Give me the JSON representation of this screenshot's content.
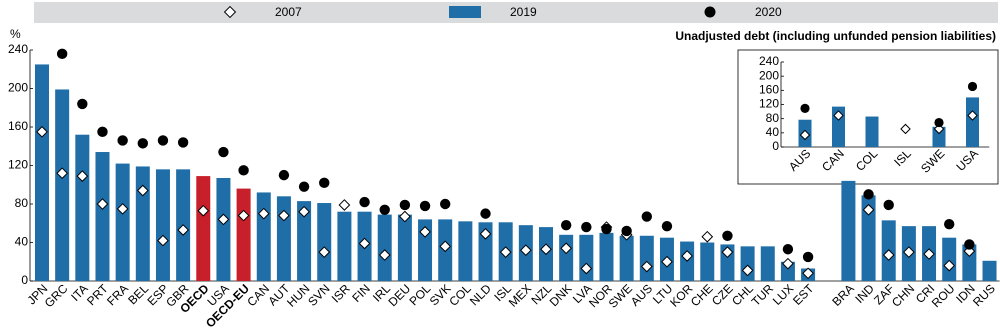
{
  "chart_data": [
    {
      "type": "bar",
      "subtitle": "Unadjusted debt (including unfunded pension liabilities)",
      "y_label": "%",
      "legend": "top",
      "grid": false,
      "categories": [
        "JPN",
        "GRC",
        "ITA",
        "PRT",
        "FRA",
        "BEL",
        "ESP",
        "GBR",
        "OECD",
        "USA",
        "OECD-EU",
        "CAN",
        "AUT",
        "HUN",
        "SVN",
        "ISR",
        "FIN",
        "IRL",
        "DEU",
        "POL",
        "SVK",
        "COL",
        "NLD",
        "ISL",
        "MEX",
        "NZL",
        "DNK",
        "LVA",
        "NOR",
        "SWE",
        "AUS",
        "LTU",
        "KOR",
        "CHE",
        "CZE",
        "CHL",
        "TUR",
        "LUX",
        "EST",
        null,
        "BRA",
        "IND",
        "ZAF",
        "CHN",
        "CRI",
        "ROU",
        "IDN",
        "RUS"
      ],
      "highlight_categories": [
        "OECD",
        "OECD-EU"
      ],
      "highlight_color": "#c8202a",
      "series": [
        {
          "name": "2007",
          "marker": "diamond",
          "color": "#ffffff",
          "values": [
            155,
            112,
            109,
            80,
            75,
            94,
            42,
            53,
            73,
            64,
            68,
            70,
            68,
            72,
            30,
            79,
            39,
            27,
            67,
            51,
            36,
            null,
            49,
            30,
            32,
            33,
            34,
            13,
            56,
            48,
            15,
            20,
            26,
            46,
            30,
            11,
            null,
            18,
            8,
            null,
            null,
            74,
            27,
            30,
            28,
            16,
            31,
            null
          ]
        },
        {
          "name": "2019",
          "marker": "bar",
          "color": "#1f6ea8",
          "values": [
            225,
            199,
            152,
            134,
            122,
            119,
            116,
            116,
            109,
            107,
            96,
            92,
            88,
            83,
            81,
            72,
            72,
            69,
            69,
            64,
            64,
            62,
            61,
            61,
            58,
            56,
            48,
            48,
            50,
            47,
            47,
            45,
            41,
            40,
            38,
            36,
            36,
            20,
            13,
            null,
            104,
            89,
            63,
            57,
            57,
            45,
            38,
            21
          ]
        },
        {
          "name": "2020",
          "marker": "circle",
          "color": "#000000",
          "values": [
            null,
            236,
            184,
            155,
            146,
            143,
            146,
            144,
            null,
            134,
            115,
            null,
            110,
            98,
            102,
            null,
            82,
            74,
            79,
            78,
            80,
            null,
            70,
            null,
            null,
            null,
            58,
            56,
            54,
            52,
            67,
            57,
            null,
            null,
            47,
            null,
            null,
            33,
            25,
            null,
            null,
            90,
            79,
            null,
            null,
            59,
            38,
            null
          ]
        }
      ],
      "ylim": [
        0,
        240
      ],
      "yticks": [
        0,
        40,
        80,
        120,
        160,
        200,
        240
      ]
    },
    {
      "type": "bar",
      "grid": false,
      "categories": [
        "AUS",
        "CAN",
        "COL",
        "ISL",
        "SWE",
        "USA"
      ],
      "series": [
        {
          "marker": "diamond",
          "color": "#ffffff",
          "values": [
            34,
            89,
            null,
            51,
            51,
            89
          ]
        },
        {
          "marker": "bar",
          "color": "#1f6ea8",
          "values": [
            77,
            114,
            86,
            null,
            57,
            140
          ]
        },
        {
          "marker": "circle",
          "color": "#000000",
          "values": [
            109,
            null,
            null,
            null,
            69,
            171
          ]
        }
      ],
      "ylim": [
        0,
        240
      ],
      "yticks": [
        0,
        40,
        80,
        120,
        160,
        200,
        240
      ]
    }
  ]
}
